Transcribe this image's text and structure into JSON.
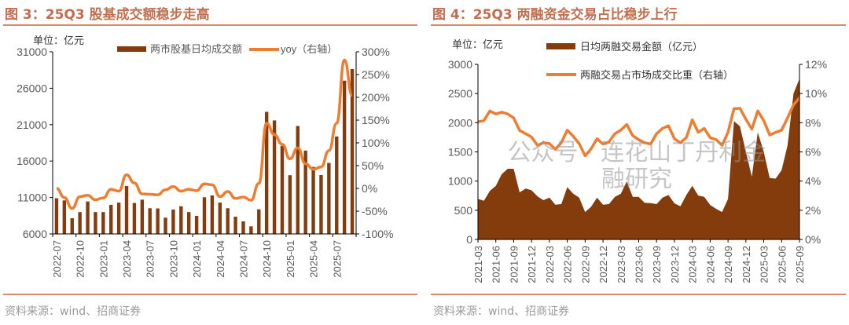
{
  "left": {
    "title": "图 3：25Q3 股基成交额稳步走高",
    "source": "资料来源：wind、招商证券"
  },
  "right": {
    "title": "图 4：25Q3 两融资金交易占比稳步上行",
    "source": "资料来源：wind、招商证券"
  },
  "watermark": "公众号 · 连花山丁丹利金融研究",
  "colors": {
    "bar": "#843c0c",
    "line": "#ed7d31",
    "title": "#c0704f",
    "axis": "#000000"
  },
  "chart_data": [
    {
      "type": "bar+line",
      "unit_label": "单位：亿元",
      "x": [
        "2022-07",
        "2022-08",
        "2022-09",
        "2022-10",
        "2022-11",
        "2022-12",
        "2023-01",
        "2023-02",
        "2023-03",
        "2023-04",
        "2023-05",
        "2023-06",
        "2023-07",
        "2023-08",
        "2023-09",
        "2023-10",
        "2023-11",
        "2023-12",
        "2024-01",
        "2024-02",
        "2024-03",
        "2024-04",
        "2024-05",
        "2024-06",
        "2024-07",
        "2024-08",
        "2024-09",
        "2024-10",
        "2024-11",
        "2024-12",
        "2025-01",
        "2025-02",
        "2025-03",
        "2025-04",
        "2025-05",
        "2025-06",
        "2025-07",
        "2025-08",
        "2025-09"
      ],
      "xticks": [
        "2022-07",
        "2022-10",
        "2023-01",
        "2023-04",
        "2023-07",
        "2023-10",
        "2024-01",
        "2024-04",
        "2024-07",
        "2024-10",
        "2025-01",
        "2025-04",
        "2025-07"
      ],
      "series": [
        {
          "name": "两市股基日均成交额",
          "type": "bar",
          "axis": "left",
          "values": [
            10900,
            10600,
            8160,
            9000,
            10460,
            9000,
            9000,
            10000,
            10300,
            12580,
            10250,
            10700,
            9530,
            9500,
            8230,
            9350,
            9800,
            9000,
            8480,
            11030,
            11290,
            10300,
            9530,
            8370,
            7730,
            7040,
            9380,
            22760,
            21580,
            18090,
            14060,
            20820,
            17440,
            15200,
            14090,
            15750,
            19380,
            27040,
            28630
          ]
        },
        {
          "name": "yoy（右轴）",
          "type": "line",
          "axis": "right",
          "values": [
            0,
            -20,
            -44,
            -18,
            -15,
            -25,
            -21,
            -2,
            -6,
            30,
            12,
            -12,
            -13,
            -14,
            -3,
            4,
            -6,
            -2,
            -5,
            10,
            8,
            -18,
            -7,
            -22,
            -19,
            -26,
            11,
            143,
            118,
            97,
            65,
            89,
            54,
            42,
            47,
            83,
            143,
            282,
            204
          ]
        }
      ],
      "ylim": [
        6000,
        31000
      ],
      "yticks": [
        "31000",
        "26000",
        "21000",
        "16000",
        "11000",
        "6000"
      ],
      "y2lim": [
        -100,
        300
      ],
      "y2ticks": [
        "300%",
        "250%",
        "200%",
        "150%",
        "100%",
        "50%",
        "0%",
        "-50%",
        "-100%"
      ],
      "legend": "top"
    },
    {
      "type": "area+line",
      "unit_label": "单位：亿元",
      "x": [
        "2021-03",
        "2021-04",
        "2021-05",
        "2021-06",
        "2021-07",
        "2021-08",
        "2021-09",
        "2021-10",
        "2021-11",
        "2021-12",
        "2022-01",
        "2022-02",
        "2022-03",
        "2022-04",
        "2022-05",
        "2022-06",
        "2022-07",
        "2022-08",
        "2022-09",
        "2022-10",
        "2022-11",
        "2022-12",
        "2023-01",
        "2023-02",
        "2023-03",
        "2023-04",
        "2023-05",
        "2023-06",
        "2023-07",
        "2023-08",
        "2023-09",
        "2023-10",
        "2023-11",
        "2023-12",
        "2024-01",
        "2024-02",
        "2024-03",
        "2024-04",
        "2024-05",
        "2024-06",
        "2024-07",
        "2024-08",
        "2024-09",
        "2024-10",
        "2024-11",
        "2024-12",
        "2025-01",
        "2025-02",
        "2025-03",
        "2025-04",
        "2025-05",
        "2025-06",
        "2025-07",
        "2025-08",
        "2025-09"
      ],
      "xticks": [
        "2021-03",
        "2021-06",
        "2021-09",
        "2021-12",
        "2022-03",
        "2022-06",
        "2022-09",
        "2022-12",
        "2023-03",
        "2023-06",
        "2023-09",
        "2023-12",
        "2024-03",
        "2024-06",
        "2024-09",
        "2024-12",
        "2025-03",
        "2025-06",
        "2025-09"
      ],
      "series": [
        {
          "name": "日均两融交易金额（亿元）",
          "type": "area",
          "axis": "left",
          "values": [
            695,
            663,
            830,
            918,
            1120,
            1210,
            1210,
            806,
            873,
            842,
            739,
            672,
            716,
            596,
            605,
            896,
            784,
            716,
            470,
            560,
            716,
            596,
            605,
            730,
            784,
            994,
            730,
            730,
            627,
            622,
            605,
            716,
            761,
            618,
            569,
            761,
            918,
            752,
            730,
            591,
            524,
            470,
            694,
            2028,
            1939,
            1500,
            1075,
            1836,
            1500,
            1052,
            1043,
            1187,
            1612,
            2500,
            2754
          ]
        },
        {
          "name": "两融交易占市场成交比重（右轴）",
          "type": "line",
          "axis": "right",
          "values": [
            8.06,
            8.15,
            8.81,
            8.6,
            8.72,
            8.6,
            8.33,
            7.47,
            7.25,
            7.02,
            6.45,
            6.63,
            6.57,
            6.18,
            6.63,
            7.49,
            7.07,
            6.57,
            5.73,
            6.21,
            6.9,
            6.54,
            6.68,
            7.25,
            7.49,
            7.88,
            7.11,
            6.84,
            6.63,
            6.54,
            7.25,
            7.61,
            7.79,
            6.9,
            6.63,
            6.98,
            8.2,
            7.34,
            7.61,
            6.98,
            6.84,
            6.45,
            7.34,
            8.96,
            8.99,
            8.24,
            7.56,
            8.81,
            8.15,
            7.16,
            7.34,
            7.49,
            8.33,
            9.22,
            9.71
          ]
        }
      ],
      "ylim": [
        0,
        3000
      ],
      "yticks": [
        "3000",
        "2500",
        "2000",
        "1500",
        "1000",
        "500",
        "0"
      ],
      "y2lim": [
        0,
        12
      ],
      "y2ticks": [
        "12%",
        "10%",
        "8%",
        "6%",
        "4%",
        "2%",
        "0%"
      ],
      "legend": "top"
    }
  ]
}
